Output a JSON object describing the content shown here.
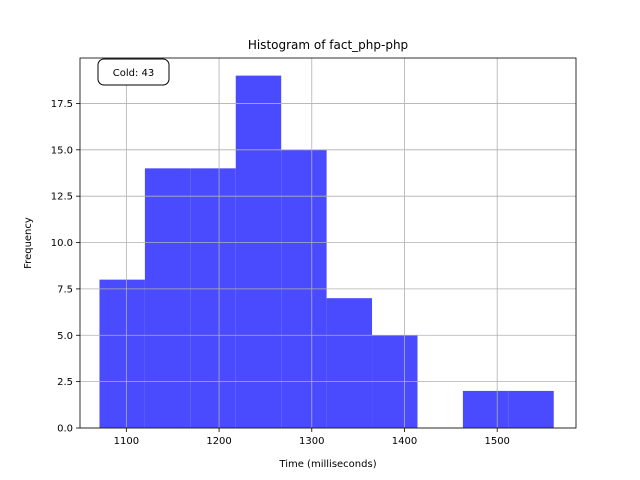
{
  "chart_data": {
    "type": "bar",
    "title": "Histogram of fact_php-php",
    "xlabel": "Time (milliseconds)",
    "ylabel": "Frequency",
    "xlim": [
      1050,
      1585
    ],
    "ylim": [
      0,
      19.95
    ],
    "xticks": [
      1100,
      1200,
      1300,
      1400,
      1500
    ],
    "yticks": [
      0.0,
      2.5,
      5.0,
      7.5,
      10.0,
      12.5,
      15.0,
      17.5
    ],
    "ytick_labels": [
      "0.0",
      "2.5",
      "5.0",
      "7.5",
      "10.0",
      "12.5",
      "15.0",
      "17.5"
    ],
    "grid": true,
    "bin_edges": [
      1071,
      1120,
      1169,
      1218,
      1267,
      1316,
      1365,
      1414,
      1463,
      1512,
      1561
    ],
    "values": [
      8,
      14,
      14,
      19,
      15,
      7,
      5,
      0,
      2,
      2
    ],
    "color": "#4a4aff",
    "annotation": "Cold: 43"
  }
}
